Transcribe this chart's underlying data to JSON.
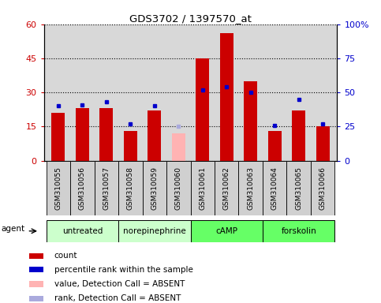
{
  "title": "GDS3702 / 1397570_at",
  "samples": [
    "GSM310055",
    "GSM310056",
    "GSM310057",
    "GSM310058",
    "GSM310059",
    "GSM310060",
    "GSM310061",
    "GSM310062",
    "GSM310063",
    "GSM310064",
    "GSM310065",
    "GSM310066"
  ],
  "count_values": [
    21,
    23,
    23,
    13,
    22,
    null,
    45,
    56,
    35,
    13,
    22,
    15
  ],
  "count_absent": [
    null,
    null,
    null,
    null,
    null,
    12,
    null,
    null,
    null,
    null,
    null,
    null
  ],
  "percentile_values": [
    40,
    41,
    43,
    27,
    40,
    null,
    52,
    54,
    50,
    26,
    45,
    27
  ],
  "percentile_absent": [
    null,
    null,
    null,
    null,
    null,
    25,
    null,
    null,
    null,
    null,
    null,
    null
  ],
  "groups": [
    {
      "label": "untreated",
      "start": 0,
      "end": 3,
      "color": "#ccffcc"
    },
    {
      "label": "norepinephrine",
      "start": 3,
      "end": 6,
      "color": "#ccffcc"
    },
    {
      "label": "cAMP",
      "start": 6,
      "end": 9,
      "color": "#66ff66"
    },
    {
      "label": "forskolin",
      "start": 9,
      "end": 12,
      "color": "#66ff66"
    }
  ],
  "ylim_left": [
    0,
    60
  ],
  "ylim_right": [
    0,
    100
  ],
  "yticks_left": [
    0,
    15,
    30,
    45,
    60
  ],
  "ytick_labels_left": [
    "0",
    "15",
    "30",
    "45",
    "60"
  ],
  "yticks_right": [
    0,
    25,
    50,
    75,
    100
  ],
  "ytick_labels_right": [
    "0",
    "25",
    "50",
    "75",
    "100%"
  ],
  "bar_color_red": "#cc0000",
  "bar_color_pink": "#ffb3b3",
  "dot_color_blue": "#0000cc",
  "dot_color_lightblue": "#aaaadd",
  "bar_width": 0.55,
  "legend_items": [
    {
      "color": "#cc0000",
      "label": "count",
      "marker": "square"
    },
    {
      "color": "#0000cc",
      "label": "percentile rank within the sample",
      "marker": "square"
    },
    {
      "color": "#ffb3b3",
      "label": "value, Detection Call = ABSENT",
      "marker": "square"
    },
    {
      "color": "#aaaadd",
      "label": "rank, Detection Call = ABSENT",
      "marker": "square"
    }
  ],
  "agent_label": "agent",
  "plot_bg": "#d8d8d8",
  "xticklabel_bg": "#d0d0d0"
}
